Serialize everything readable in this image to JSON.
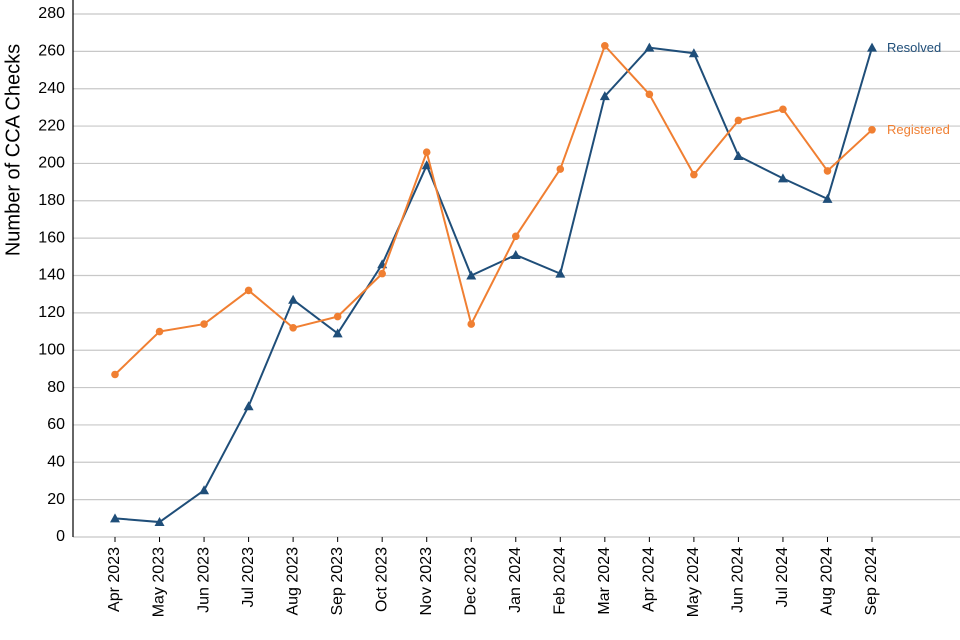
{
  "chart_data": {
    "type": "line",
    "y_label": "Number of CCA Checks",
    "categories": [
      "Apr 2023",
      "May 2023",
      "Jun 2023",
      "Jul 2023",
      "Aug 2023",
      "Sep 2023",
      "Oct 2023",
      "Nov 2023",
      "Dec 2023",
      "Jan 2024",
      "Feb 2024",
      "Mar 2024",
      "Apr 2024",
      "May 2024",
      "Jun 2024",
      "Jul 2024",
      "Aug 2024",
      "Sep 2024"
    ],
    "series": [
      {
        "name": "Resolved",
        "color": "#1f4e79",
        "marker": "triangle",
        "values": [
          10,
          8,
          25,
          70,
          127,
          109,
          146,
          199,
          140,
          151,
          141,
          236,
          262,
          259,
          204,
          192,
          181,
          262
        ]
      },
      {
        "name": "Registered",
        "color": "#f07f32",
        "marker": "circle",
        "values": [
          87,
          110,
          114,
          132,
          112,
          118,
          141,
          206,
          114,
          161,
          197,
          263,
          237,
          194,
          223,
          229,
          196,
          218
        ]
      }
    ],
    "ylim": [
      0,
      280
    ],
    "yticks": [
      0,
      20,
      40,
      60,
      80,
      100,
      120,
      140,
      160,
      180,
      200,
      220,
      240,
      260,
      280
    ],
    "grid": true,
    "legend": "right"
  }
}
